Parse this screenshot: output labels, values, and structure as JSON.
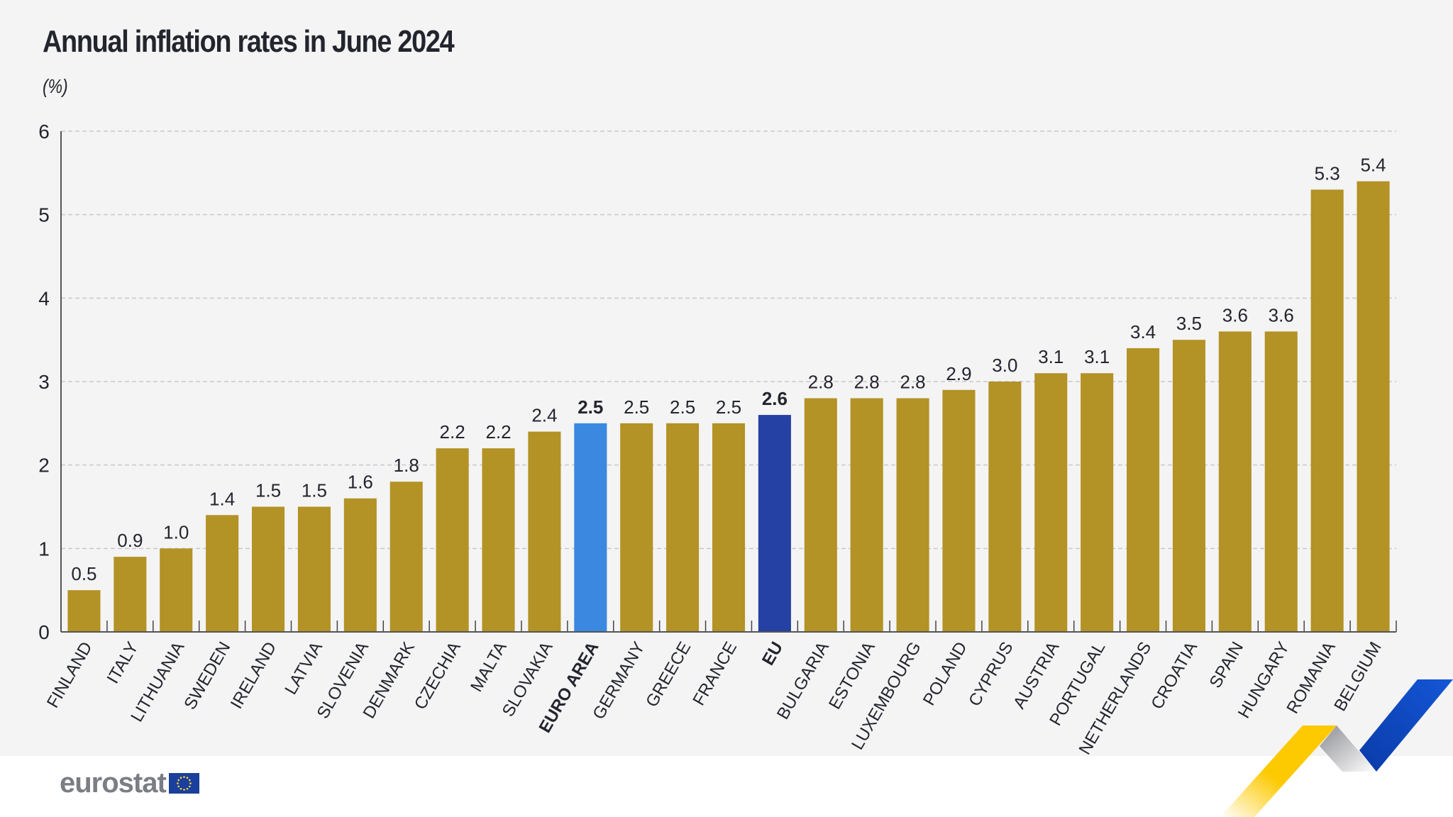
{
  "header": {
    "title": "Annual inflation rates in June 2024",
    "unit": "(%)"
  },
  "footer": {
    "logo_text": "eurostat",
    "logo_flag": "eu-flag-icon"
  },
  "colors": {
    "background": "#f4f4f4",
    "country_bar": "#b39226",
    "euro_area_bar": "#3a88e0",
    "eu_bar": "#2641a4",
    "text": "#23252e",
    "logo_text": "#7b7d85",
    "ribbon_yellow": "#fdc900",
    "ribbon_grey": "#b8b9bd",
    "ribbon_blue": "#0f4ac9"
  },
  "chart_data": {
    "type": "bar",
    "title": "Annual inflation rates in June 2024",
    "ylabel": "(%)",
    "xlabel": "",
    "ylim": [
      0,
      6
    ],
    "yticks": [
      0,
      1,
      2,
      3,
      4,
      5,
      6
    ],
    "grid": true,
    "legend": "none",
    "categories": [
      "FINLAND",
      "ITALY",
      "LITHUANIA",
      "SWEDEN",
      "IRELAND",
      "LATVIA",
      "SLOVENIA",
      "DENMARK",
      "CZECHIA",
      "MALTA",
      "SLOVAKIA",
      "EURO AREA",
      "GERMANY",
      "GREECE",
      "FRANCE",
      "EU",
      "BULGARIA",
      "ESTONIA",
      "LUXEMBOURG",
      "POLAND",
      "CYPRUS",
      "AUSTRIA",
      "PORTUGAL",
      "NETHERLANDS",
      "CROATIA",
      "SPAIN",
      "HUNGARY",
      "ROMANIA",
      "BELGIUM"
    ],
    "values": [
      0.5,
      0.9,
      1.0,
      1.4,
      1.5,
      1.5,
      1.6,
      1.8,
      2.2,
      2.2,
      2.4,
      2.5,
      2.5,
      2.5,
      2.5,
      2.6,
      2.8,
      2.8,
      2.8,
      2.9,
      3.0,
      3.1,
      3.1,
      3.4,
      3.5,
      3.6,
      3.6,
      5.3,
      5.4
    ],
    "value_labels": [
      "0.5",
      "0.9",
      "1.0",
      "1.4",
      "1.5",
      "1.5",
      "1.6",
      "1.8",
      "2.2",
      "2.2",
      "2.4",
      "2.5",
      "2.5",
      "2.5",
      "2.5",
      "2.6",
      "2.8",
      "2.8",
      "2.8",
      "2.9",
      "3.0",
      "3.1",
      "3.1",
      "3.4",
      "3.5",
      "3.6",
      "3.6",
      "5.3",
      "5.4"
    ],
    "highlights": {
      "EURO AREA": "euro_area",
      "EU": "eu"
    }
  }
}
